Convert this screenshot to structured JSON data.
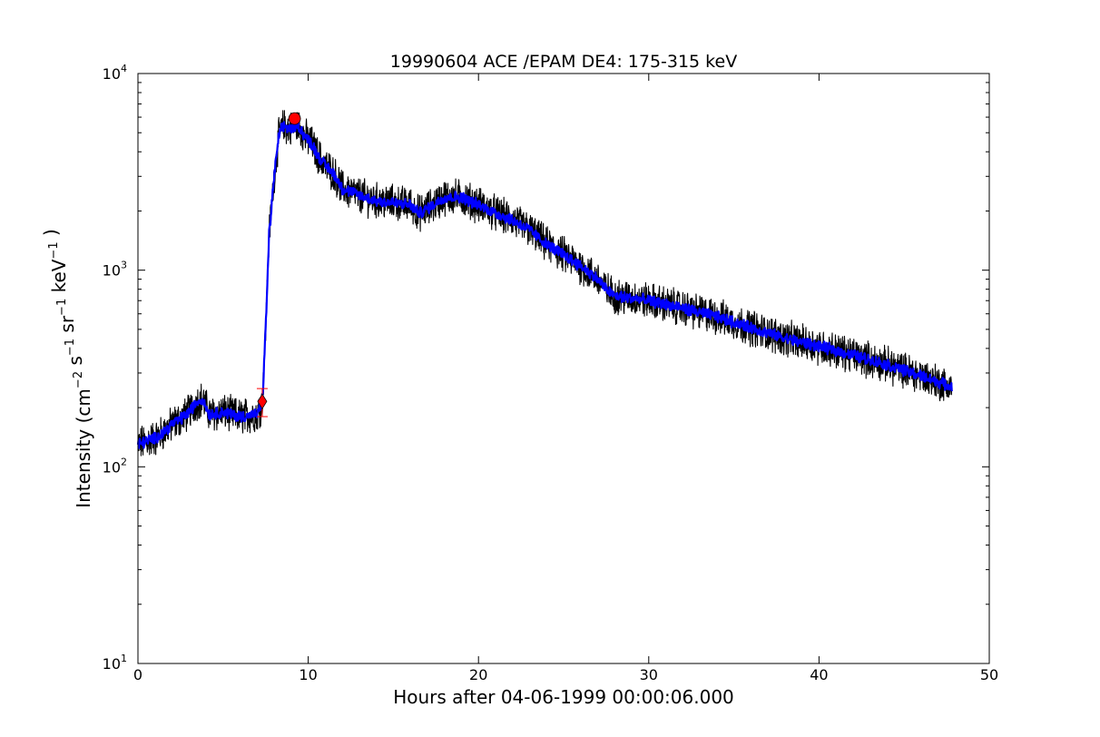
{
  "chart_data": {
    "type": "line",
    "title": "19990604 ACE /EPAM DE4: 175-315 keV",
    "xlabel": "Hours after 04-06-1999 00:00:06.000",
    "ylabel": {
      "prefix": "Intensity (cm",
      "parts": [
        {
          "base": "cm",
          "exp": "−2"
        },
        {
          "base": " s",
          "exp": "−1"
        },
        {
          "base": " sr",
          "exp": "−1"
        },
        {
          "base": " keV",
          "exp": "−1"
        }
      ],
      "suffix": ")"
    },
    "xlim": [
      0,
      50
    ],
    "ylim": [
      10,
      10000
    ],
    "yscale": "log",
    "grid": false,
    "x_ticks": [
      {
        "value": 0,
        "label": "0"
      },
      {
        "value": 10,
        "label": "10"
      },
      {
        "value": 20,
        "label": "20"
      },
      {
        "value": 30,
        "label": "30"
      },
      {
        "value": 40,
        "label": "40"
      },
      {
        "value": 50,
        "label": "50"
      }
    ],
    "y_ticks": [
      {
        "value": 10,
        "base": "10",
        "exp": "1"
      },
      {
        "value": 100,
        "base": "10",
        "exp": "2"
      },
      {
        "value": 1000,
        "base": "10",
        "exp": "3"
      },
      {
        "value": 10000,
        "base": "10",
        "exp": "4"
      }
    ],
    "series": [
      {
        "role": "raw",
        "color": "#000000",
        "noise": 0.16,
        "x": [
          0,
          0.5,
          1,
          1.5,
          2,
          2.5,
          3,
          3.5,
          3.8,
          4.2,
          5,
          6,
          7,
          7.3,
          7.5,
          7.7,
          8.0,
          8.3,
          8.6,
          9.0,
          9.4,
          9.8,
          10.2,
          10.6,
          11,
          11.5,
          12,
          13,
          14,
          15,
          16,
          16.5,
          17,
          18,
          19,
          20,
          21,
          22,
          23,
          24,
          25,
          26,
          27,
          27.5,
          28,
          29,
          30,
          32,
          34,
          36,
          38,
          40,
          42,
          44,
          46,
          47.8
        ],
        "y": [
          130,
          135,
          140,
          150,
          165,
          175,
          190,
          215,
          220,
          185,
          190,
          180,
          185,
          210,
          500,
          1500,
          3000,
          5000,
          5400,
          5200,
          5500,
          4800,
          4400,
          3800,
          3400,
          3100,
          2600,
          2400,
          2250,
          2200,
          2150,
          1950,
          2050,
          2350,
          2350,
          2150,
          1950,
          1800,
          1600,
          1350,
          1200,
          1050,
          900,
          800,
          740,
          720,
          700,
          640,
          580,
          510,
          450,
          410,
          370,
          330,
          290,
          255
        ]
      },
      {
        "role": "smoothed",
        "color": "#0000ff",
        "noise": 0.05,
        "x": [
          0,
          0.5,
          1,
          1.5,
          2,
          2.5,
          3,
          3.5,
          3.8,
          4.2,
          5,
          6,
          7,
          7.3,
          7.5,
          7.7,
          8.0,
          8.3,
          8.6,
          9.0,
          9.4,
          9.8,
          10.2,
          10.6,
          11,
          11.5,
          12,
          13,
          14,
          15,
          16,
          16.5,
          17,
          18,
          19,
          20,
          21,
          22,
          23,
          24,
          25,
          26,
          27,
          27.5,
          28,
          29,
          30,
          32,
          34,
          36,
          38,
          40,
          42,
          44,
          46,
          47.8
        ],
        "y": [
          130,
          135,
          140,
          150,
          165,
          175,
          190,
          215,
          220,
          185,
          190,
          180,
          185,
          210,
          500,
          1500,
          3000,
          5000,
          5400,
          5200,
          5500,
          4800,
          4400,
          3800,
          3400,
          3100,
          2600,
          2400,
          2250,
          2200,
          2150,
          1950,
          2050,
          2350,
          2350,
          2150,
          1950,
          1800,
          1600,
          1350,
          1200,
          1050,
          900,
          800,
          740,
          720,
          700,
          640,
          580,
          510,
          450,
          410,
          370,
          330,
          290,
          255
        ]
      }
    ],
    "markers": [
      {
        "name": "onset",
        "shape": "diamond",
        "x": 7.3,
        "y": 215,
        "color": "#ff0000",
        "error_low": 180,
        "error_high": 250
      },
      {
        "name": "peak",
        "shape": "circle",
        "x": 9.2,
        "y": 5900,
        "color": "#ff0000"
      }
    ]
  }
}
